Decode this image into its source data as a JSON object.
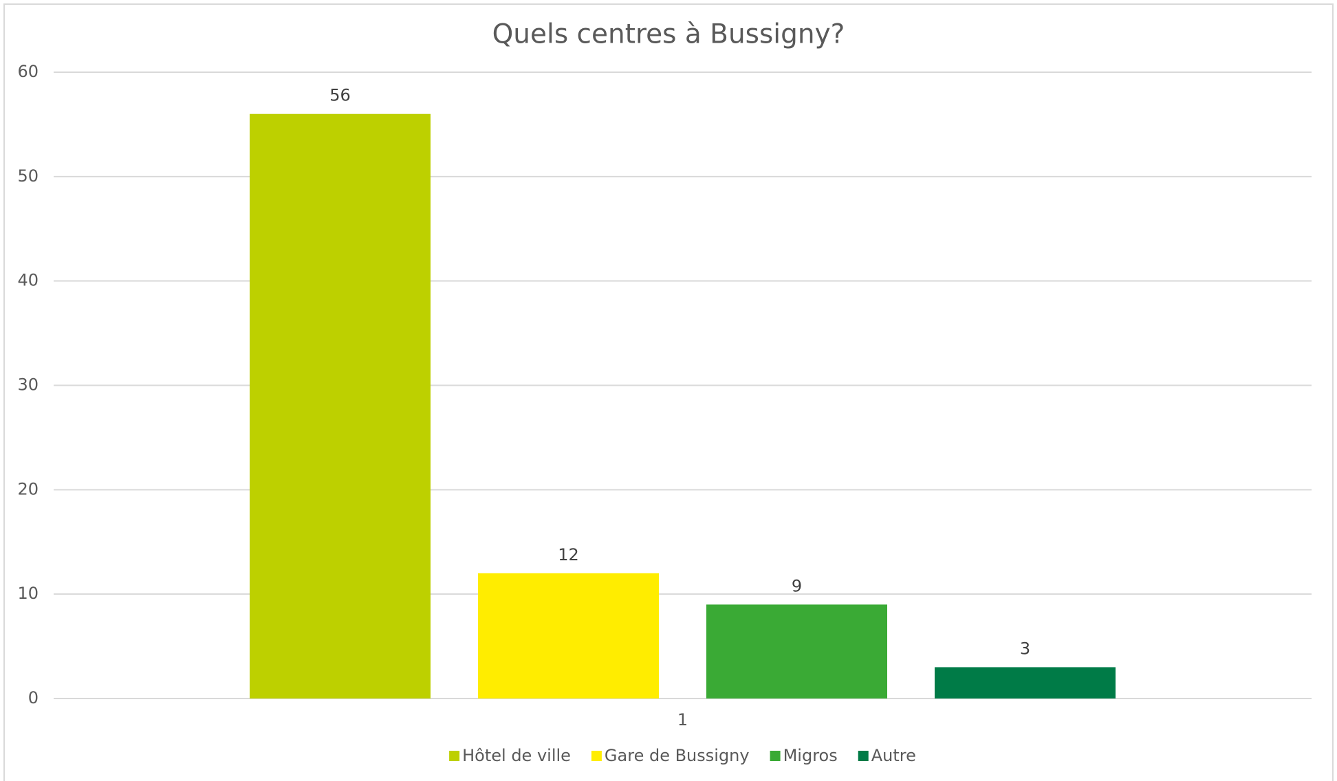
{
  "chart_data": {
    "type": "bar",
    "title": "Quels centres à Bussigny?",
    "categories": [
      "1"
    ],
    "series": [
      {
        "name": "Hôtel de ville",
        "color": "#bdd000",
        "values": [
          56
        ]
      },
      {
        "name": "Gare de Bussigny",
        "color": "#ffed00",
        "values": [
          12
        ]
      },
      {
        "name": "Migros",
        "color": "#3aaa35",
        "values": [
          9
        ]
      },
      {
        "name": "Autre",
        "color": "#007b47",
        "values": [
          3
        ]
      }
    ],
    "ylim": [
      0,
      60
    ],
    "yticks": [
      0,
      10,
      20,
      30,
      40,
      50,
      60
    ],
    "grid": true,
    "legend": "bottom"
  }
}
